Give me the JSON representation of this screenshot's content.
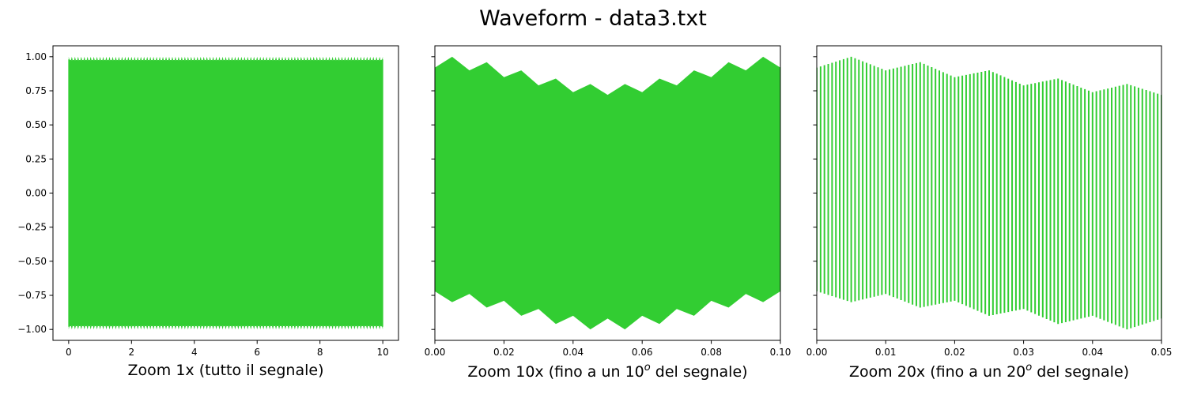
{
  "title": "Waveform - data3.txt",
  "colors": {
    "signal": "#32cd32",
    "axes": "#000000"
  },
  "chart_data": [
    {
      "type": "line",
      "xlabel": "Zoom 1x (tutto il segnale)",
      "xlim": [
        -0.5,
        10.5
      ],
      "ylim": [
        -1.08,
        1.08
      ],
      "xticks": [
        0,
        2,
        4,
        6,
        8,
        10
      ],
      "xtick_labels": [
        "0",
        "2",
        "4",
        "6",
        "8",
        "10"
      ],
      "yticks": [
        1.0,
        0.75,
        0.5,
        0.25,
        0.0,
        -0.25,
        -0.5,
        -0.75,
        -1.0
      ],
      "ytick_labels": [
        "1.00",
        "0.75",
        "0.50",
        "0.25",
        "0.00",
        "−0.25",
        "−0.50",
        "−0.75",
        "−1.00"
      ],
      "signal": {
        "x_start": 0.0,
        "x_end": 10.0,
        "min": -1.0,
        "max": 1.0
      }
    },
    {
      "type": "line",
      "xlabel_parts": [
        "Zoom 10x (fino a un 10",
        "o",
        " del segnale)"
      ],
      "xlim": [
        0.0,
        0.1
      ],
      "ylim": [
        -1.08,
        1.08
      ],
      "xticks": [
        0.0,
        0.02,
        0.04,
        0.06,
        0.08,
        0.1
      ],
      "xtick_labels": [
        "0.00",
        "0.02",
        "0.04",
        "0.06",
        "0.08",
        "0.10"
      ],
      "envelope": {
        "x": [
          0.0,
          0.005,
          0.01,
          0.015,
          0.02,
          0.025,
          0.03,
          0.035,
          0.04,
          0.045,
          0.05,
          0.055,
          0.06,
          0.065,
          0.07,
          0.075,
          0.08,
          0.085,
          0.09,
          0.095,
          0.1
        ],
        "upper": [
          0.92,
          1.0,
          0.9,
          0.96,
          0.85,
          0.9,
          0.79,
          0.84,
          0.74,
          0.8,
          0.72,
          0.8,
          0.74,
          0.84,
          0.79,
          0.9,
          0.85,
          0.96,
          0.9,
          1.0,
          0.92
        ],
        "lower": [
          -0.72,
          -0.8,
          -0.74,
          -0.84,
          -0.79,
          -0.9,
          -0.85,
          -0.96,
          -0.9,
          -1.0,
          -0.92,
          -1.0,
          -0.9,
          -0.96,
          -0.85,
          -0.9,
          -0.79,
          -0.84,
          -0.74,
          -0.8,
          -0.72
        ]
      }
    },
    {
      "type": "line",
      "xlabel_parts": [
        "Zoom 20x (fino a un 20",
        "o",
        " del segnale)"
      ],
      "xlim": [
        0.0,
        0.05
      ],
      "ylim": [
        -1.08,
        1.08
      ],
      "xticks": [
        0.0,
        0.01,
        0.02,
        0.03,
        0.04,
        0.05
      ],
      "xtick_labels": [
        "0.00",
        "0.01",
        "0.02",
        "0.03",
        "0.04",
        "0.05"
      ],
      "envelope": {
        "x": [
          0.0,
          0.005,
          0.01,
          0.015,
          0.02,
          0.025,
          0.03,
          0.035,
          0.04,
          0.045,
          0.05
        ],
        "upper": [
          0.92,
          1.0,
          0.9,
          0.96,
          0.85,
          0.9,
          0.79,
          0.84,
          0.74,
          0.8,
          0.72
        ],
        "lower": [
          -0.72,
          -0.8,
          -0.74,
          -0.84,
          -0.79,
          -0.9,
          -0.85,
          -0.96,
          -0.9,
          -1.0,
          -0.92
        ]
      },
      "oscillation_cycles": 90
    }
  ]
}
